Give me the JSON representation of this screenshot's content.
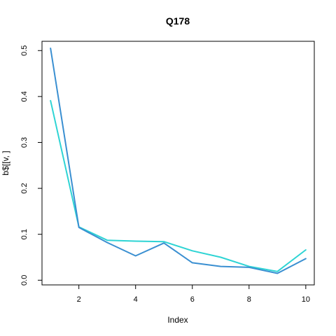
{
  "chart_data": {
    "type": "line",
    "title": "Q178",
    "xlabel": "Index",
    "ylabel": "b$[[v, ]",
    "xlim": [
      0.7,
      10.3
    ],
    "ylim": [
      -0.0102,
      0.5202
    ],
    "x_ticks": [
      2,
      4,
      6,
      8,
      10
    ],
    "y_ticks": [
      0.0,
      0.1,
      0.2,
      0.3,
      0.4,
      0.5
    ],
    "y_tick_labels": [
      "0.0",
      "0.1",
      "0.2",
      "0.3",
      "0.4",
      "0.5"
    ],
    "x": [
      1,
      2,
      3,
      4,
      5,
      6,
      7,
      8,
      9,
      10
    ],
    "series": [
      {
        "color": "#3a8fd1",
        "values": [
          0.505,
          0.115,
          0.082,
          0.053,
          0.081,
          0.038,
          0.03,
          0.028,
          0.015,
          0.047
        ]
      },
      {
        "color": "#2ed4d4",
        "values": [
          0.391,
          0.116,
          0.087,
          0.085,
          0.084,
          0.064,
          0.05,
          0.03,
          0.019,
          0.066
        ]
      }
    ],
    "grid": false,
    "legend": "none"
  }
}
